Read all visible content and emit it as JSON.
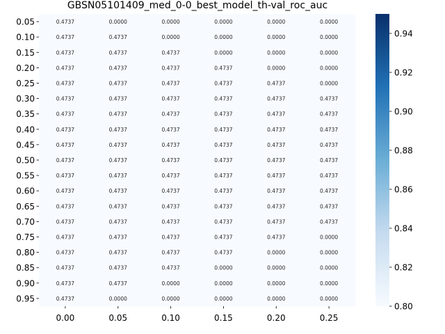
{
  "chart_data": {
    "type": "heatmap",
    "title": "GBSN05101409_med_0-0_best_model_th-val_roc_auc",
    "x_categories": [
      "0.00",
      "0.05",
      "0.10",
      "0.15",
      "0.20",
      "0.25"
    ],
    "y_categories": [
      "0.05",
      "0.10",
      "0.15",
      "0.20",
      "0.25",
      "0.30",
      "0.35",
      "0.40",
      "0.45",
      "0.50",
      "0.55",
      "0.60",
      "0.65",
      "0.70",
      "0.75",
      "0.80",
      "0.85",
      "0.90",
      "0.95"
    ],
    "cell_labels": [
      [
        "0.4737",
        "0.0000",
        "0.0000",
        "0.0000",
        "0.0000",
        "0.0000"
      ],
      [
        "0.4737",
        "0.4737",
        "0.0000",
        "0.0000",
        "0.0000",
        "0.0000"
      ],
      [
        "0.4737",
        "0.4737",
        "0.4737",
        "0.0000",
        "0.0000",
        "0.0000"
      ],
      [
        "0.4737",
        "0.4737",
        "0.4737",
        "0.4737",
        "0.0000",
        "0.0000"
      ],
      [
        "0.4737",
        "0.4737",
        "0.4737",
        "0.4737",
        "0.4737",
        "0.0000"
      ],
      [
        "0.4737",
        "0.4737",
        "0.4737",
        "0.4737",
        "0.4737",
        "0.4737"
      ],
      [
        "0.4737",
        "0.4737",
        "0.4737",
        "0.4737",
        "0.4737",
        "0.4737"
      ],
      [
        "0.4737",
        "0.4737",
        "0.4737",
        "0.4737",
        "0.4737",
        "0.4737"
      ],
      [
        "0.4737",
        "0.4737",
        "0.4737",
        "0.4737",
        "0.4737",
        "0.4737"
      ],
      [
        "0.4737",
        "0.4737",
        "0.4737",
        "0.4737",
        "0.4737",
        "0.4737"
      ],
      [
        "0.4737",
        "0.4737",
        "0.4737",
        "0.4737",
        "0.4737",
        "0.4737"
      ],
      [
        "0.4737",
        "0.4737",
        "0.4737",
        "0.4737",
        "0.4737",
        "0.4737"
      ],
      [
        "0.4737",
        "0.4737",
        "0.4737",
        "0.4737",
        "0.4737",
        "0.4737"
      ],
      [
        "0.4737",
        "0.4737",
        "0.4737",
        "0.4737",
        "0.4737",
        "0.4737"
      ],
      [
        "0.4737",
        "0.4737",
        "0.4737",
        "0.4737",
        "0.4737",
        "0.0000"
      ],
      [
        "0.4737",
        "0.4737",
        "0.4737",
        "0.4737",
        "0.0000",
        "0.0000"
      ],
      [
        "0.4737",
        "0.4737",
        "0.4737",
        "0.0000",
        "0.0000",
        "0.0000"
      ],
      [
        "0.4737",
        "0.4737",
        "0.0000",
        "0.0000",
        "0.0000",
        "0.0000"
      ],
      [
        "0.4737",
        "0.0000",
        "0.0000",
        "0.0000",
        "0.0000",
        "0.0000"
      ]
    ],
    "colorbar": {
      "colormap": "Blues",
      "range": [
        0.8,
        0.95
      ],
      "ticks": [
        "0.80",
        "0.82",
        "0.84",
        "0.86",
        "0.88",
        "0.90",
        "0.92",
        "0.94"
      ]
    },
    "colors": {
      "cell_fill": "#f7fbff",
      "cmap_low": "#f7fbff",
      "cmap_mid": "#6baed6",
      "cmap_high": "#08306b"
    }
  }
}
